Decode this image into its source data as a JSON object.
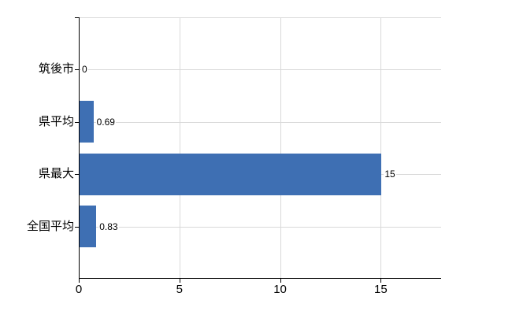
{
  "chart_data": {
    "type": "bar",
    "orientation": "horizontal",
    "categories": [
      "筑後市",
      "県平均",
      "県最大",
      "全国平均"
    ],
    "values": [
      0,
      0.69,
      15,
      0.83
    ],
    "value_labels": [
      "0",
      "0.69",
      "15",
      "0.83"
    ],
    "x_ticks": [
      0,
      5,
      10,
      15
    ],
    "x_tick_labels": [
      "0",
      "5",
      "10",
      "15"
    ],
    "xlim": [
      0,
      18
    ],
    "grid": true,
    "legend": false,
    "colors": {
      "bar": "#3e6fb3",
      "grid": "#d9d9d9",
      "axis": "#000000",
      "text": "#000000",
      "background": "#ffffff"
    }
  }
}
